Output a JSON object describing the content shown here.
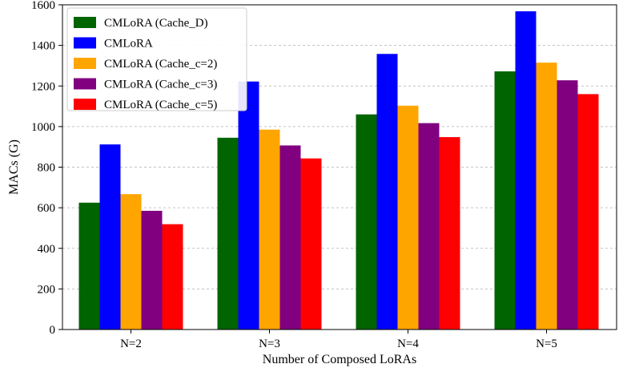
{
  "chart_data": {
    "type": "bar",
    "title": "",
    "xlabel": "Number of Composed LoRAs",
    "ylabel": "MACs (G)",
    "categories": [
      "N=2",
      "N=3",
      "N=4",
      "N=5"
    ],
    "ylim": [
      0,
      1600
    ],
    "yticks": [
      0,
      200,
      400,
      600,
      800,
      1000,
      1200,
      1400,
      1600
    ],
    "grid": "y-dashed",
    "legend_position": "top-left",
    "series": [
      {
        "name": "CMLoRA (Cache_D)",
        "color": "#006400",
        "values": [
          625,
          945,
          1060,
          1272
        ]
      },
      {
        "name": "CMLoRA",
        "color": "#0000ff",
        "values": [
          912,
          1222,
          1358,
          1568
        ]
      },
      {
        "name": "CMLoRA (Cache_c=2)",
        "color": "#ffa500",
        "values": [
          667,
          985,
          1103,
          1315
        ]
      },
      {
        "name": "CMLoRA (Cache_c=3)",
        "color": "#800080",
        "values": [
          585,
          907,
          1017,
          1228
        ]
      },
      {
        "name": "CMLoRA (Cache_c=5)",
        "color": "#ff0000",
        "values": [
          519,
          843,
          948,
          1160
        ]
      }
    ]
  }
}
